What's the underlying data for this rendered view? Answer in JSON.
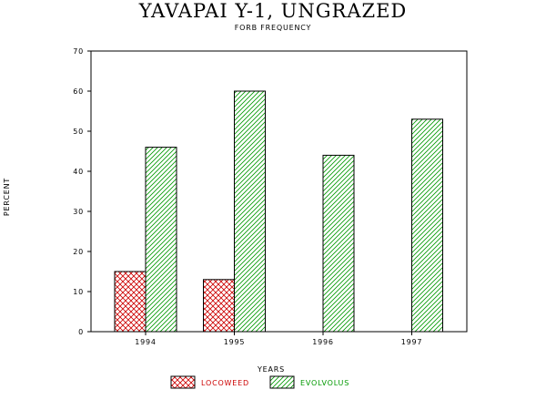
{
  "chart_data": {
    "type": "bar",
    "title": "YAVAPAI Y-1, UNGRAZED",
    "subtitle": "FORB FREQUENCY",
    "xlabel": "YEARS",
    "ylabel": "PERCENT",
    "categories": [
      "1994",
      "1995",
      "1996",
      "1997"
    ],
    "ylim": [
      0,
      70
    ],
    "yticks": [
      0,
      10,
      20,
      30,
      40,
      50,
      60,
      70
    ],
    "series": [
      {
        "name": "LOCOWEED",
        "values": [
          15,
          13,
          0,
          0
        ],
        "color": "#cc0000",
        "pattern": "crosshatch"
      },
      {
        "name": "EVOLVOLUS",
        "values": [
          46,
          60,
          44,
          53
        ],
        "color": "#009900",
        "pattern": "diagonal"
      }
    ],
    "legend_position": "bottom-center",
    "grid": false
  }
}
